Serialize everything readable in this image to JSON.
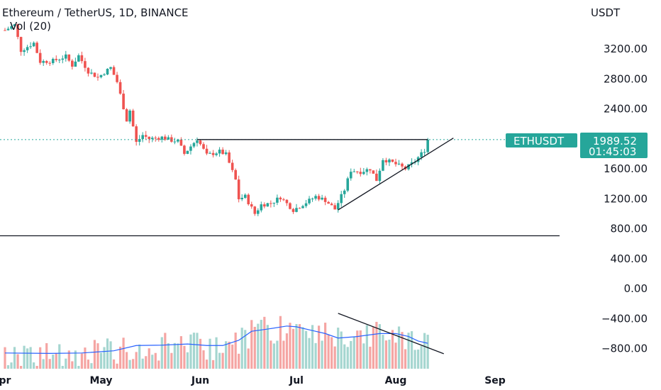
{
  "header": {
    "title": "Ethereum / TetherUS, 1D, BINANCE",
    "volume_label": "Vol (20)",
    "currency": "USDT"
  },
  "price_tag": {
    "symbol": "ETHUSDT",
    "price": "1989.52",
    "countdown": "01:45:03",
    "color": "#26a69a"
  },
  "colors": {
    "up": "#26a69a",
    "down": "#ef5350",
    "up_volume": "#a5d6d0",
    "down_volume": "#f5a5a3",
    "volume_ma": "#2962ff",
    "trendline": "#131722"
  },
  "chart_data": {
    "type": "candlestick",
    "symbol": "Ethereum / TetherUS",
    "interval": "1D",
    "exchange": "BINANCE",
    "y_ticks": [
      "3200.00",
      "2800.00",
      "2400.00",
      "1600.00",
      "1200.00",
      "800.00",
      "400.00",
      "0.00",
      "−400.00",
      "−800.00"
    ],
    "y_tick_values": [
      3200,
      2800,
      2400,
      1600,
      1200,
      800,
      400,
      0,
      -400,
      -800
    ],
    "x_ticks": [
      "pr",
      "May",
      "Jun",
      "Jul",
      "Aug",
      "Sep"
    ],
    "x_tick_dates": [
      "2022-04-01",
      "2022-05-01",
      "2022-06-01",
      "2022-07-01",
      "2022-08-01",
      "2022-09-01"
    ],
    "date_range": [
      "2022-04-01",
      "2022-08-11"
    ],
    "last_price": 1989.52,
    "price_close_path": [
      [
        "2022-04-01",
        3450
      ],
      [
        "2022-04-04",
        3520
      ],
      [
        "2022-04-06",
        3180
      ],
      [
        "2022-04-10",
        3280
      ],
      [
        "2022-04-12",
        3030
      ],
      [
        "2022-04-16",
        3040
      ],
      [
        "2022-04-20",
        3100
      ],
      [
        "2022-04-22",
        2980
      ],
      [
        "2022-04-24",
        3110
      ],
      [
        "2022-04-27",
        2900
      ],
      [
        "2022-04-30",
        2820
      ],
      [
        "2022-05-04",
        2950
      ],
      [
        "2022-05-06",
        2760
      ],
      [
        "2022-05-09",
        2250
      ],
      [
        "2022-05-10",
        2380
      ],
      [
        "2022-05-12",
        1950
      ],
      [
        "2022-05-14",
        2050
      ],
      [
        "2022-05-16",
        2000
      ],
      [
        "2022-05-20",
        2020
      ],
      [
        "2022-05-23",
        1980
      ],
      [
        "2022-05-25",
        1970
      ],
      [
        "2022-05-27",
        1800
      ],
      [
        "2022-05-31",
        2000
      ],
      [
        "2022-06-03",
        1780
      ],
      [
        "2022-06-07",
        1830
      ],
      [
        "2022-06-09",
        1790
      ],
      [
        "2022-06-12",
        1450
      ],
      [
        "2022-06-13",
        1200
      ],
      [
        "2022-06-15",
        1230
      ],
      [
        "2022-06-18",
        1000
      ],
      [
        "2022-06-20",
        1120
      ],
      [
        "2022-06-23",
        1140
      ],
      [
        "2022-06-26",
        1220
      ],
      [
        "2022-06-30",
        1050
      ],
      [
        "2022-07-04",
        1150
      ],
      [
        "2022-07-07",
        1230
      ],
      [
        "2022-07-10",
        1180
      ],
      [
        "2022-07-13",
        1060
      ],
      [
        "2022-07-16",
        1320
      ],
      [
        "2022-07-18",
        1580
      ],
      [
        "2022-07-21",
        1560
      ],
      [
        "2022-07-24",
        1600
      ],
      [
        "2022-07-26",
        1450
      ],
      [
        "2022-07-28",
        1730
      ],
      [
        "2022-07-31",
        1680
      ],
      [
        "2022-08-04",
        1600
      ],
      [
        "2022-08-07",
        1700
      ],
      [
        "2022-08-10",
        1850
      ],
      [
        "2022-08-11",
        1989.52
      ]
    ],
    "volume_ma_path": [
      [
        "2022-04-01",
        -860
      ],
      [
        "2022-04-15",
        -865
      ],
      [
        "2022-04-25",
        -860
      ],
      [
        "2022-05-05",
        -830
      ],
      [
        "2022-05-12",
        -760
      ],
      [
        "2022-05-20",
        -755
      ],
      [
        "2022-05-28",
        -740
      ],
      [
        "2022-06-03",
        -760
      ],
      [
        "2022-06-08",
        -760
      ],
      [
        "2022-06-13",
        -690
      ],
      [
        "2022-06-17",
        -570
      ],
      [
        "2022-06-22",
        -540
      ],
      [
        "2022-06-28",
        -500
      ],
      [
        "2022-07-01",
        -510
      ],
      [
        "2022-07-06",
        -560
      ],
      [
        "2022-07-10",
        -600
      ],
      [
        "2022-07-14",
        -660
      ],
      [
        "2022-07-20",
        -640
      ],
      [
        "2022-07-27",
        -600
      ],
      [
        "2022-08-01",
        -600
      ],
      [
        "2022-08-05",
        -640
      ],
      [
        "2022-08-08",
        -700
      ],
      [
        "2022-08-11",
        -730
      ]
    ],
    "annotations": [
      {
        "type": "resistance",
        "from": [
          "2022-05-31",
          1990
        ],
        "to": [
          "2022-08-11",
          1990
        ]
      },
      {
        "type": "ascending-support",
        "from": [
          "2022-07-14",
          1050
        ],
        "to": [
          "2022-08-19",
          2010
        ]
      },
      {
        "type": "horizontal",
        "from": [
          "2022-04-01",
          705
        ],
        "to": [
          "2022-09-05",
          705
        ]
      },
      {
        "type": "volume-downtrend",
        "from": [
          "2022-07-14",
          -330
        ],
        "to": [
          "2022-08-16",
          -870
        ]
      }
    ],
    "grid": false,
    "legend": "top-left"
  }
}
